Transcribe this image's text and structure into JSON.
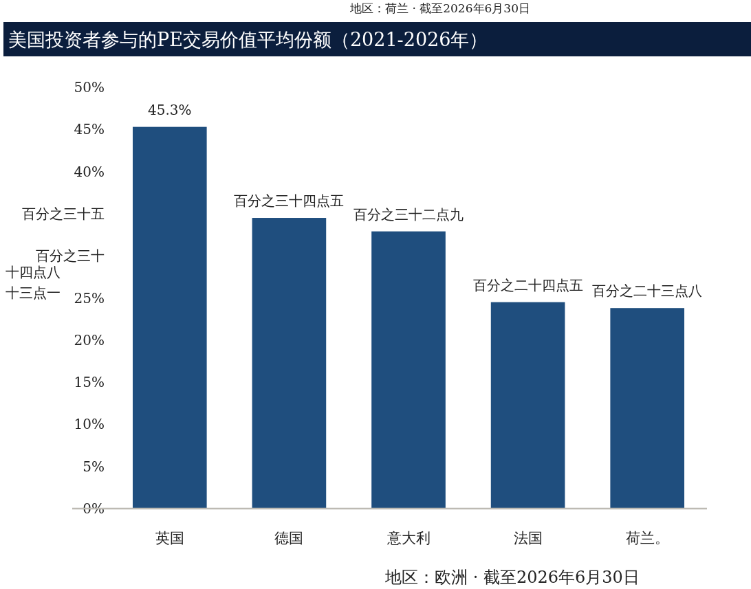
{
  "chart_data": {
    "type": "bar",
    "title": "美国投资者参与的PE交易价值平均份额（2021-2026年）",
    "categories": [
      "英国",
      "德国",
      "意大利",
      "法国",
      "荷兰。"
    ],
    "values": [
      45.3,
      34.5,
      32.9,
      24.5,
      23.8
    ],
    "value_labels": [
      "45.3%",
      "百分之三十四点五",
      "百分之三十二点九",
      "百分之二十四点五",
      "百分之二十三点八"
    ],
    "color": "#1f4e7e",
    "ylim": [
      0,
      50
    ],
    "yticks": [
      {
        "value": 0,
        "label": "0%"
      },
      {
        "value": 5,
        "label": "5%"
      },
      {
        "value": 10,
        "label": "10%"
      },
      {
        "value": 15,
        "label": "15%"
      },
      {
        "value": 20,
        "label": "20%"
      },
      {
        "value": 25,
        "label": "25%"
      },
      {
        "value": 30,
        "label": "百分之三十"
      },
      {
        "value": 35,
        "label": "百分之三十五"
      },
      {
        "value": 40,
        "label": "40%"
      },
      {
        "value": 45,
        "label": "45%"
      },
      {
        "value": 50,
        "label": "50%"
      }
    ],
    "annotations": [
      "地区：荷兰 · 截至2026年6月30日",
      "十四点八",
      "十三点一",
      "地区：欧洲 · 截至2026年6月30日"
    ]
  }
}
